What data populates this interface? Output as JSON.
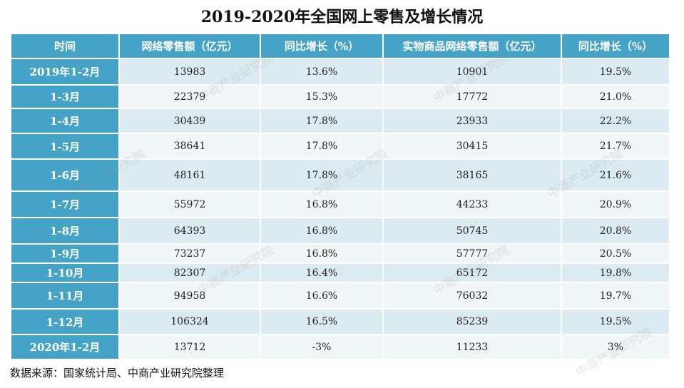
{
  "chart_data": {
    "type": "table",
    "title": "2019-2020年全国网上零售及增长情况",
    "columns": [
      "时间",
      "网络零售额（亿元）",
      "同比增长（%）",
      "实物商品网络零售额（亿元）",
      "同比增长（%）"
    ],
    "rows": [
      [
        "2019年1-2月",
        "13983",
        "13.6%",
        "10901",
        "19.5%"
      ],
      [
        "1-3月",
        "22379",
        "15.3%",
        "17772",
        "21.0%"
      ],
      [
        "1-4月",
        "30439",
        "17.8%",
        "23933",
        "22.2%"
      ],
      [
        "1-5月",
        "38641",
        "17.8%",
        "30415",
        "21.7%"
      ],
      [
        "1-6月",
        "48161",
        "17.8%",
        "38165",
        "21.6%"
      ],
      [
        "1-7月",
        "55972",
        "16.8%",
        "44233",
        "20.9%"
      ],
      [
        "1-8月",
        "64393",
        "16.8%",
        "50745",
        "20.8%"
      ],
      [
        "1-9月",
        "73237",
        "16.8%",
        "57777",
        "20.5%"
      ],
      [
        "1-10月",
        "82307",
        "16.4%",
        "65172",
        "19.8%"
      ],
      [
        "1-11月",
        "94958",
        "16.6%",
        "76032",
        "19.7%"
      ],
      [
        "1-12月",
        "106324",
        "16.5%",
        "85239",
        "19.5%"
      ],
      [
        "2020年1-2月",
        "13712",
        "-3%",
        "11233",
        "3%"
      ]
    ],
    "source": "数据来源：国家统计局、中商产业研究院整理"
  },
  "colors": {
    "header_bg": "#44a3c6",
    "row_odd_bg": "#dcebf2",
    "row_even_bg": "#f1f6f9"
  },
  "watermark": "中商产业研究院"
}
